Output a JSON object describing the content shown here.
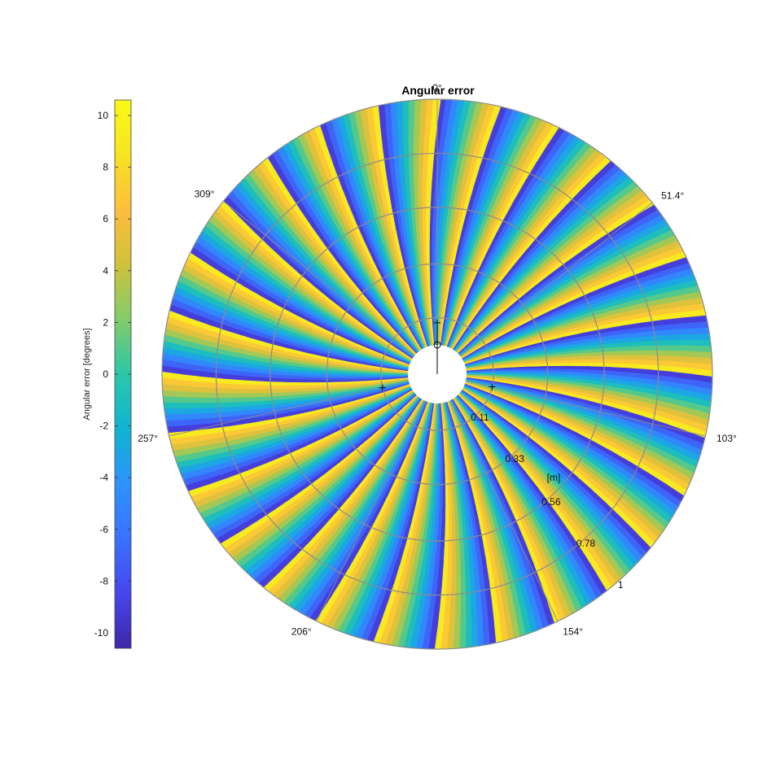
{
  "figure": {
    "title": "Angular error"
  },
  "colors": {
    "colormap": [
      "#3e26a8",
      "#4746eb",
      "#3a71fe",
      "#2d93fb",
      "#10b4d3",
      "#2bc7a9",
      "#83cc6a",
      "#cfc23b",
      "#fdbe3d",
      "#f6e423",
      "#f9fb15"
    ],
    "grid": "#8c8c8c",
    "title": "#000000"
  },
  "chart_data": {
    "type": "heatmap",
    "subtype": "polar",
    "title": "Angular error",
    "colorbar": {
      "label": "Angular error [degrees]",
      "limits": [
        -10.6,
        10.6
      ],
      "ticks": [
        -10,
        -8,
        -6,
        -4,
        -2,
        0,
        2,
        4,
        6,
        8,
        10
      ],
      "tick_labels": [
        "-10",
        "-8",
        "-6",
        "-4",
        "-2",
        "0",
        "2",
        "4",
        "6",
        "8",
        "10"
      ]
    },
    "theta_ticks_deg": [
      0,
      51.4,
      103,
      154,
      206,
      257,
      309
    ],
    "theta_tick_labels": [
      "0°",
      "51.4°",
      "103°",
      "154°",
      "206°",
      "257°",
      "309°"
    ],
    "theta_direction": "clockwise",
    "theta_zero": "top",
    "r_ticks": [
      0.11,
      0.33,
      0.56,
      0.78,
      1
    ],
    "r_tick_labels": [
      "0.11",
      "0.33",
      "0.56",
      "0.78",
      "1"
    ],
    "r_unit_label": "[m]",
    "r_lim": [
      0,
      1
    ],
    "sectors": 28,
    "sector_pattern": "value ramps continuously from -10 to +10 across each sector (twisted wedges)",
    "z_range": [
      -10,
      10
    ],
    "markers": [
      {
        "symbol": "+",
        "theta_deg": 0,
        "r": 0.09
      },
      {
        "symbol": "+",
        "theta_deg": 256,
        "r": 0.11
      },
      {
        "symbol": "+",
        "theta_deg": 103,
        "r": 0.11
      },
      {
        "symbol": "o",
        "theta_deg": 0,
        "r": 0
      }
    ]
  }
}
